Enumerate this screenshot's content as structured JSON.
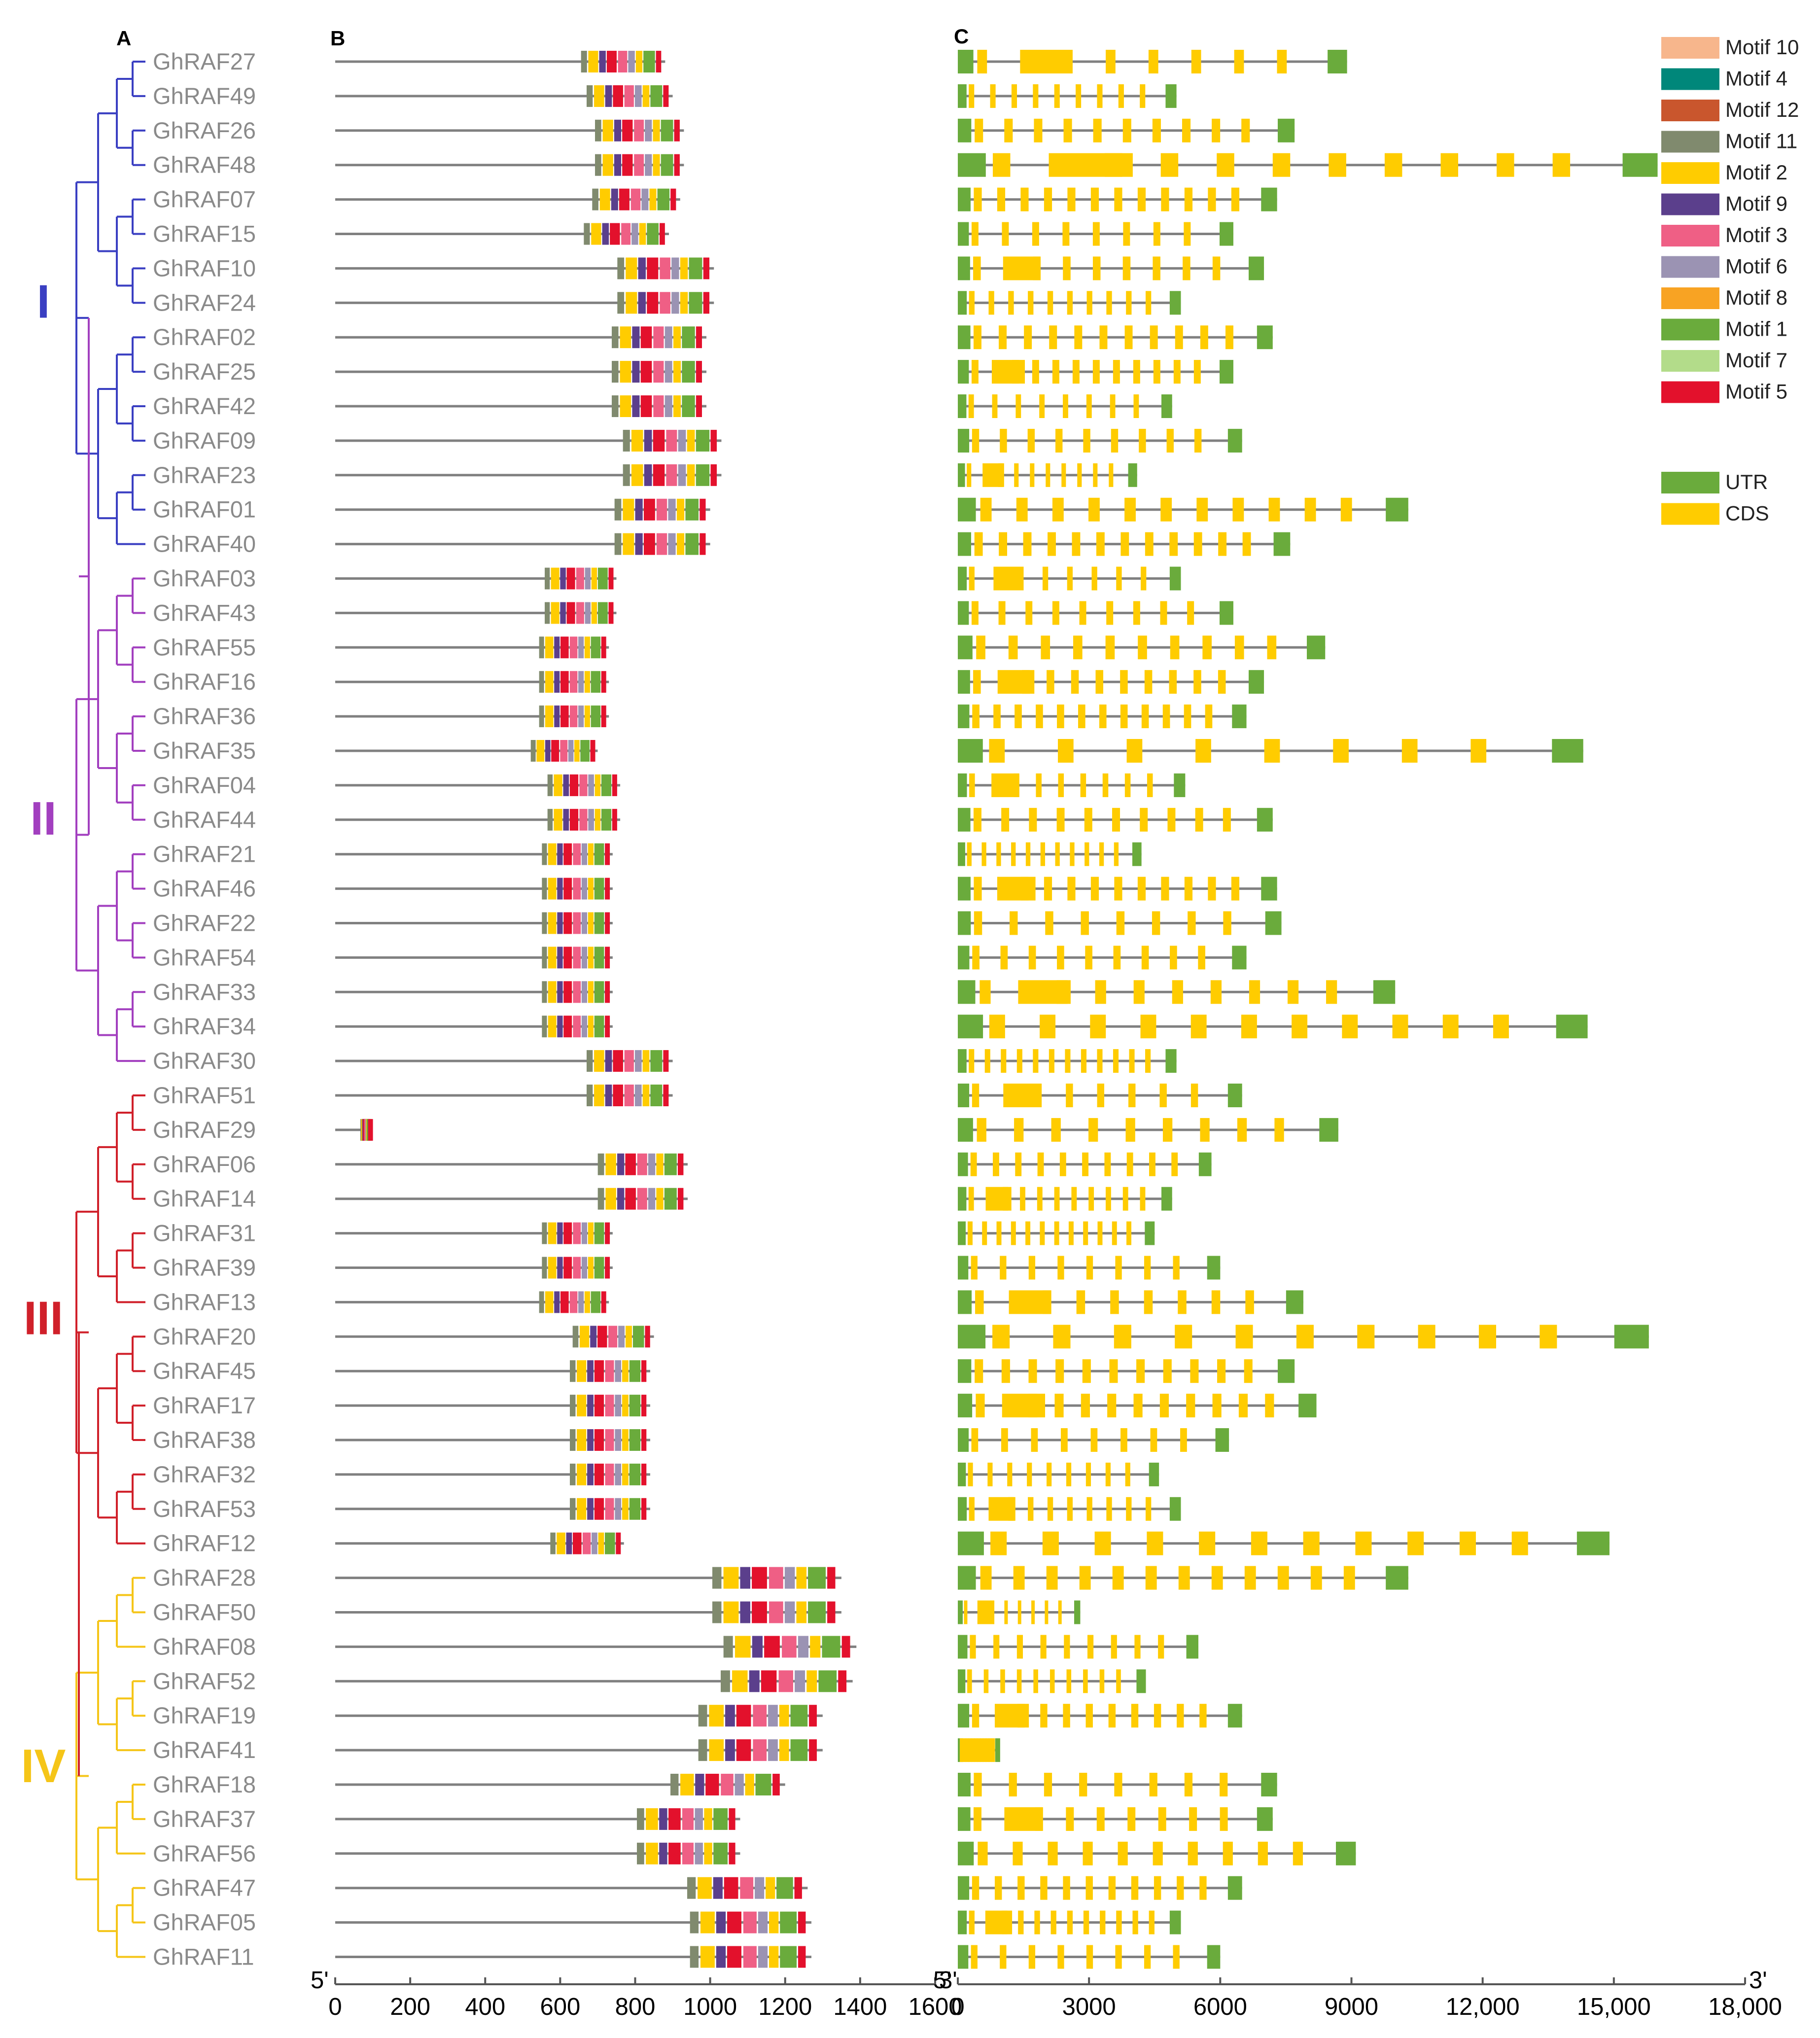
{
  "panels": {
    "a": "A",
    "b": "B",
    "c": "C"
  },
  "colors": {
    "group_I": "#3a3fc2",
    "group_II": "#a23fbf",
    "group_III": "#d0202a",
    "group_IV": "#f5c518",
    "line": "#808080",
    "utr": "#6aab3c",
    "cds": "#ffcc00"
  },
  "groups": [
    {
      "id": "I",
      "label": "I",
      "color": "#3a3fc2",
      "first": 0,
      "last": 14
    },
    {
      "id": "II",
      "label": "II",
      "color": "#a23fbf",
      "first": 15,
      "last": 29
    },
    {
      "id": "III",
      "label": "III",
      "color": "#d0202a",
      "first": 30,
      "last": 43
    },
    {
      "id": "IV",
      "label": "IV",
      "color": "#f5c518",
      "first": 44,
      "last": 55
    }
  ],
  "genes": [
    "GhRAF27",
    "GhRAF49",
    "GhRAF26",
    "GhRAF48",
    "GhRAF07",
    "GhRAF15",
    "GhRAF10",
    "GhRAF24",
    "GhRAF02",
    "GhRAF25",
    "GhRAF42",
    "GhRAF09",
    "GhRAF23",
    "GhRAF01",
    "GhRAF40",
    "GhRAF03",
    "GhRAF43",
    "GhRAF55",
    "GhRAF16",
    "GhRAF36",
    "GhRAF35",
    "GhRAF04",
    "GhRAF44",
    "GhRAF21",
    "GhRAF46",
    "GhRAF22",
    "GhRAF54",
    "GhRAF33",
    "GhRAF34",
    "GhRAF30",
    "GhRAF51",
    "GhRAF29",
    "GhRAF06",
    "GhRAF14",
    "GhRAF31",
    "GhRAF39",
    "GhRAF13",
    "GhRAF20",
    "GhRAF45",
    "GhRAF17",
    "GhRAF38",
    "GhRAF32",
    "GhRAF53",
    "GhRAF12",
    "GhRAF28",
    "GhRAF50",
    "GhRAF08",
    "GhRAF52",
    "GhRAF19",
    "GhRAF41",
    "GhRAF18",
    "GhRAF37",
    "GhRAF56",
    "GhRAF47",
    "GhRAF05",
    "GhRAF11"
  ],
  "protein_lengths": [
    880,
    900,
    930,
    930,
    920,
    890,
    1010,
    1010,
    990,
    990,
    990,
    1030,
    1030,
    1000,
    1000,
    750,
    750,
    730,
    730,
    730,
    700,
    760,
    760,
    740,
    740,
    740,
    740,
    740,
    740,
    900,
    900,
    90,
    940,
    940,
    740,
    740,
    730,
    850,
    840,
    840,
    840,
    840,
    840,
    770,
    1350,
    1350,
    1390,
    1380,
    1300,
    1300,
    1200,
    1080,
    1080,
    1260,
    1270,
    1270
  ],
  "motif_legend": [
    {
      "id": "10",
      "label": "Motif 10",
      "color": "#f7b68c"
    },
    {
      "id": "4",
      "label": "Motif 4",
      "color": "#00877a"
    },
    {
      "id": "12",
      "label": "Motif 12",
      "color": "#c9562d"
    },
    {
      "id": "11",
      "label": "Motif 11",
      "color": "#808a6e"
    },
    {
      "id": "2",
      "label": "Motif 2",
      "color": "#ffcc00"
    },
    {
      "id": "9",
      "label": "Motif 9",
      "color": "#5b3f8c"
    },
    {
      "id": "3",
      "label": "Motif 3",
      "color": "#ef5f85"
    },
    {
      "id": "6",
      "label": "Motif 6",
      "color": "#9b93b3"
    },
    {
      "id": "8",
      "label": "Motif 8",
      "color": "#f8a323"
    },
    {
      "id": "1",
      "label": "Motif 1",
      "color": "#6aab3c"
    },
    {
      "id": "7",
      "label": "Motif 7",
      "color": "#b3dc8a"
    },
    {
      "id": "5",
      "label": "Motif 5",
      "color": "#e3112c"
    }
  ],
  "structure_legend": [
    {
      "id": "utr",
      "label": "UTR",
      "color": "#6aab3c"
    },
    {
      "id": "cds",
      "label": "CDS",
      "color": "#ffcc00"
    }
  ],
  "protein_axis": {
    "ticks": [
      "0",
      "200",
      "400",
      "600",
      "800",
      "1000",
      "1200",
      "1400",
      "1600"
    ],
    "max": 1600,
    "start_label": "5'",
    "end_label": "3'"
  },
  "gene_axis": {
    "ticks": [
      "0",
      "3000",
      "6000",
      "9000",
      "12,000",
      "15,000",
      "18,000"
    ],
    "max": 18000,
    "start_label": "5'",
    "end_label": "3'"
  },
  "gene_lengths": [
    8900,
    5000,
    7700,
    16000,
    7300,
    6300,
    7000,
    5100,
    7200,
    6300,
    4900,
    6500,
    4100,
    10300,
    7600,
    5100,
    6300,
    8400,
    7000,
    6600,
    14300,
    5200,
    7200,
    4200,
    7300,
    7400,
    6600,
    10000,
    14400,
    5000,
    6500,
    8700,
    5800,
    4900,
    4500,
    6000,
    7900,
    15800,
    7700,
    8200,
    6200,
    4600,
    5100,
    14900,
    10300,
    2800,
    5500,
    4300,
    6500,
    900,
    7300,
    7200,
    9100,
    6500,
    5100,
    6000
  ]
}
